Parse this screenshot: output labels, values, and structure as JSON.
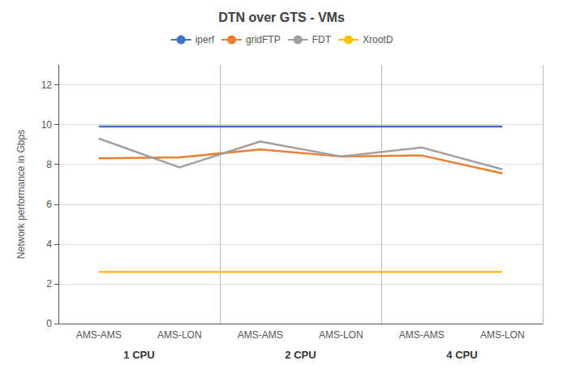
{
  "chart_data": {
    "type": "line",
    "title": "DTN over GTS - VMs",
    "ylabel": "Network performance in Gbps",
    "categories": [
      "AMS-AMS",
      "AMS-LON",
      "AMS-AMS",
      "AMS-LON",
      "AMS-AMS",
      "AMS-LON"
    ],
    "annotations": [
      "1 CPU",
      "2 CPU",
      "4 CPU"
    ],
    "series": [
      {
        "name": "iperf",
        "color": "#4472C4",
        "values": [
          9.9,
          9.9,
          9.9,
          9.9,
          9.9,
          9.9
        ]
      },
      {
        "name": "gridFTP",
        "color": "#ED7D31",
        "values": [
          8.3,
          8.35,
          8.75,
          8.4,
          8.45,
          7.55
        ]
      },
      {
        "name": "FDT",
        "color": "#A0A0A0",
        "values": [
          9.3,
          7.85,
          9.15,
          8.4,
          8.85,
          7.75
        ]
      },
      {
        "name": "XrootD",
        "color": "#FFC000",
        "values": [
          2.6,
          2.6,
          2.6,
          2.6,
          2.6,
          2.6
        ]
      }
    ],
    "ylim": [
      0,
      13
    ],
    "yticks": [
      0,
      2,
      4,
      6,
      8,
      10,
      12
    ],
    "grid": true,
    "legend": "top"
  }
}
